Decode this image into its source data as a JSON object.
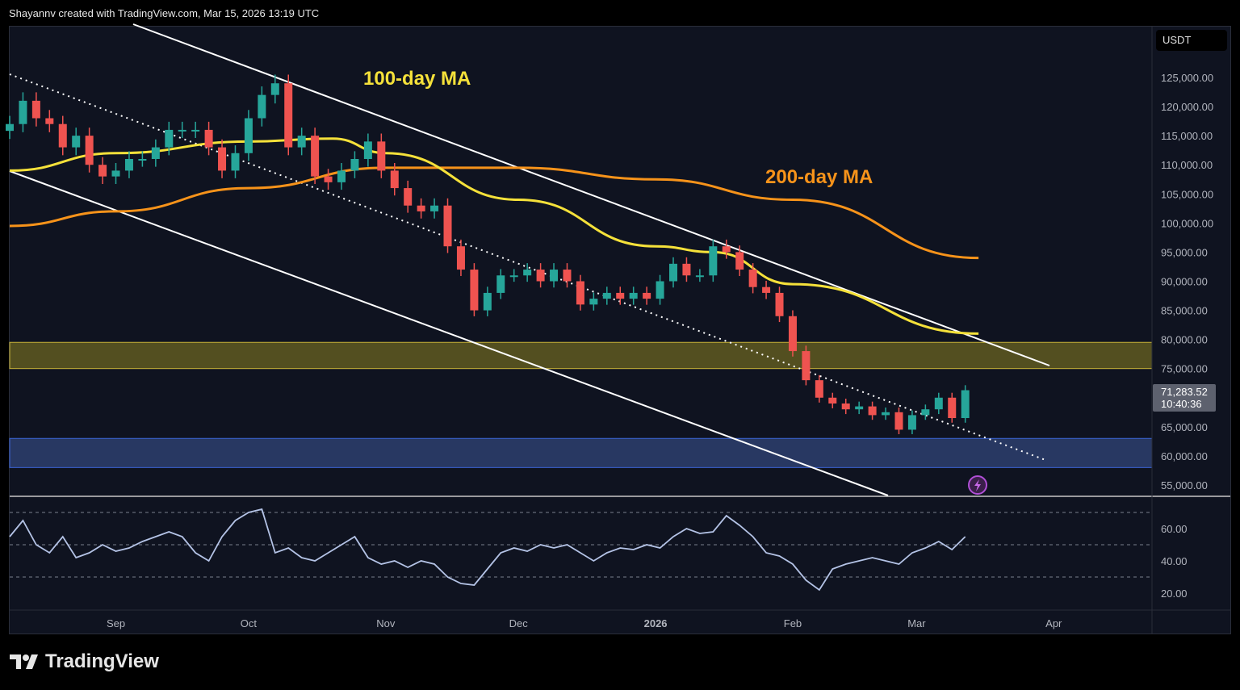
{
  "header": {
    "credit": "Shayannv created with TradingView.com, Mar 15, 2026 13:19 UTC"
  },
  "footer": {
    "brand": "TradingView"
  },
  "chart_data": {
    "type": "candlestick",
    "currency": "USDT",
    "annotations": {
      "ma100": "100-day MA",
      "ma200": "200-day MA"
    },
    "colors": {
      "up": "#26a69a",
      "down": "#ef5350",
      "ma100": "#f5e13a",
      "ma200": "#f7931a",
      "supply_zone": "#6b6420",
      "demand_zone": "#2d3f6e",
      "rsi": "#b4c3e6"
    },
    "x_ticks": [
      "Sep",
      "Oct",
      "Nov",
      "Dec",
      "2026",
      "Feb",
      "Mar",
      "Apr"
    ],
    "y_ticks": [
      "125,000.00",
      "120,000.00",
      "115,000.00",
      "110,000.00",
      "105,000.00",
      "100,000.00",
      "95,000.00",
      "90,000.00",
      "85,000.00",
      "80,000.00",
      "75,000.00",
      "65,000.00",
      "60,000.00",
      "55,000.00"
    ],
    "ylim": [
      55000,
      125000
    ],
    "last_price": {
      "price": "71,283.52",
      "countdown": "10:40:36"
    },
    "start_date": "2025-08-08",
    "step_days": 3,
    "closes": [
      117000,
      121000,
      118000,
      117000,
      113000,
      115000,
      110000,
      108000,
      109000,
      111000,
      111000,
      113000,
      116000,
      116000,
      116000,
      113000,
      109000,
      112000,
      118000,
      122000,
      124000,
      113000,
      115000,
      108000,
      107000,
      109000,
      111000,
      114000,
      109000,
      106000,
      103000,
      102000,
      103000,
      96000,
      92000,
      85000,
      88000,
      91000,
      91000,
      92000,
      90000,
      92000,
      90000,
      86000,
      87000,
      88000,
      87000,
      88000,
      87000,
      90000,
      93000,
      91000,
      91000,
      96000,
      95000,
      92000,
      89000,
      88000,
      84000,
      78000,
      73000,
      70000,
      69000,
      68000,
      68500,
      67000,
      67500,
      64500,
      67000,
      68000,
      70000,
      66500,
      71283.52
    ],
    "ma100": [
      [
        0,
        109000
      ],
      [
        24,
        112000
      ],
      [
        54,
        114000
      ],
      [
        73,
        114500
      ],
      [
        85,
        112000
      ],
      [
        115,
        104000
      ],
      [
        146,
        96000
      ],
      [
        159,
        95000
      ],
      [
        177,
        89500
      ],
      [
        219,
        81000
      ]
    ],
    "ma200": [
      [
        0,
        99500
      ],
      [
        24,
        102000
      ],
      [
        54,
        106000
      ],
      [
        85,
        109500
      ],
      [
        115,
        109500
      ],
      [
        146,
        107500
      ],
      [
        177,
        104000
      ],
      [
        219,
        94000
      ]
    ],
    "supply_zone": [
      75000,
      79500
    ],
    "demand_zone": [
      58000,
      63000
    ],
    "rsi": {
      "y_ticks": [
        "60.00",
        "40.00",
        "20.00"
      ],
      "levels": [
        70,
        50,
        30
      ],
      "values": [
        55,
        65,
        50,
        45,
        55,
        42,
        45,
        50,
        46,
        48,
        52,
        55,
        58,
        55,
        45,
        40,
        55,
        65,
        70,
        72,
        45,
        48,
        42,
        40,
        45,
        50,
        55,
        42,
        38,
        40,
        36,
        40,
        38,
        30,
        26,
        25,
        35,
        45,
        48,
        46,
        50,
        48,
        50,
        45,
        40,
        45,
        48,
        47,
        50,
        48,
        55,
        60,
        57,
        58,
        68,
        62,
        55,
        45,
        43,
        38,
        28,
        22,
        35,
        38,
        40,
        42,
        40,
        38,
        45,
        48,
        52,
        47,
        55
      ]
    }
  }
}
